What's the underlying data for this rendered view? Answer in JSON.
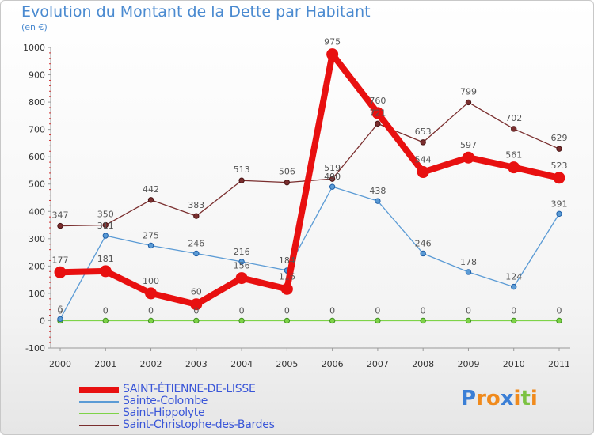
{
  "header": {
    "title": "Evolution du Montant de la Dette par Habitant",
    "unit": "(en €)"
  },
  "chart_data": {
    "type": "line",
    "title": "Evolution du Montant de la Dette par Habitant",
    "subtitle": "(en €)",
    "x": [
      2000,
      2001,
      2002,
      2003,
      2004,
      2005,
      2006,
      2007,
      2008,
      2009,
      2010,
      2011
    ],
    "ylim": [
      -100,
      1000
    ],
    "yticks": [
      -100,
      0,
      100,
      200,
      300,
      400,
      500,
      600,
      700,
      800,
      900,
      1000
    ],
    "grid": false,
    "legend_position": "bottom-left",
    "series": [
      {
        "name": "SAINT-ÉTIENNE-DE-LISSE",
        "color": "#e81010",
        "values": [
          177,
          181,
          100,
          60,
          156,
          116,
          975,
          760,
          544,
          597,
          561,
          523
        ]
      },
      {
        "name": "Sainte-Colombe",
        "color": "#5b9bd5",
        "values": [
          6,
          311,
          275,
          246,
          216,
          184,
          490,
          438,
          246,
          178,
          124,
          391
        ]
      },
      {
        "name": "Saint-Hippolyte",
        "color": "#7ed348",
        "values": [
          0,
          0,
          0,
          0,
          0,
          0,
          0,
          0,
          0,
          0,
          0,
          0
        ]
      },
      {
        "name": "Saint-Christophe-des-Bardes",
        "color": "#7a2e2e",
        "values": [
          347,
          350,
          442,
          383,
          513,
          506,
          519,
          721,
          653,
          799,
          702,
          629
        ]
      }
    ]
  },
  "logo": {
    "letters": [
      "P",
      "r",
      "o",
      "x",
      "i",
      "t",
      "i"
    ],
    "colors": [
      "#3b7fd6",
      "#f08a1c",
      "#f08a1c",
      "#3b7fd6",
      "#f08a1c",
      "#7cc242",
      "#f08a1c"
    ]
  }
}
